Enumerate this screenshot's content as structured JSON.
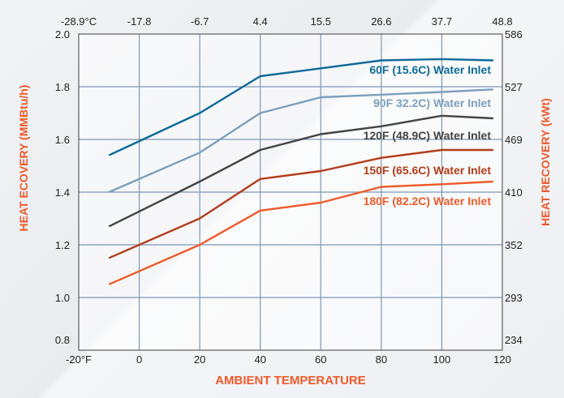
{
  "chart_data": {
    "type": "line",
    "xlabel": "AMBIENT TEMPERATURE",
    "ylabel_left": "HEAT ECOVERY (MMBtu/h)",
    "ylabel_right": "HEAT RECOVERY (kWt)",
    "xlim": [
      -20,
      120
    ],
    "ylim": [
      0.8,
      2.0
    ],
    "grid": true,
    "x_ticks_bottom": [
      "-20°F",
      "0",
      "20",
      "40",
      "60",
      "80",
      "100",
      "120"
    ],
    "x_ticks_top": [
      "-28.9°C",
      "-17.8",
      "-6.7",
      "4.4",
      "15.5",
      "26.6",
      "37.7",
      "48.8"
    ],
    "y_ticks_left": [
      "0.8",
      "1.0",
      "1.2",
      "1.4",
      "1.6",
      "1.8",
      "2.0"
    ],
    "y_ticks_right": [
      "234",
      "293",
      "352",
      "410",
      "469",
      "527",
      "586"
    ],
    "series": [
      {
        "name": "60F (15.6C) Water Inlet",
        "color": "#0e6a9a",
        "x": [
          -10,
          20,
          40,
          60,
          80,
          100,
          117
        ],
        "y": [
          1.54,
          1.7,
          1.84,
          1.87,
          1.9,
          1.905,
          1.9
        ]
      },
      {
        "name": "90F 32.2C) Water Inlet",
        "color": "#7d9fbc",
        "x": [
          -10,
          20,
          40,
          60,
          80,
          100,
          117
        ],
        "y": [
          1.4,
          1.55,
          1.7,
          1.76,
          1.77,
          1.78,
          1.79
        ]
      },
      {
        "name": "120F (48.9C) Water Inlet",
        "color": "#444444",
        "x": [
          -10,
          20,
          40,
          60,
          80,
          100,
          117
        ],
        "y": [
          1.27,
          1.44,
          1.56,
          1.62,
          1.65,
          1.69,
          1.68
        ]
      },
      {
        "name": "150F (65.6C) Water Inlet",
        "color": "#b33d1a",
        "x": [
          -10,
          20,
          40,
          60,
          80,
          100,
          117
        ],
        "y": [
          1.15,
          1.3,
          1.45,
          1.48,
          1.53,
          1.56,
          1.56
        ]
      },
      {
        "name": "180F (82.2C) Water Inlet",
        "color": "#ee5a2a",
        "x": [
          -10,
          20,
          40,
          60,
          80,
          100,
          117
        ],
        "y": [
          1.05,
          1.2,
          1.33,
          1.36,
          1.42,
          1.43,
          1.44
        ]
      }
    ],
    "colors": {
      "axis_title": "#ee5a2a",
      "grid": "#7d97b5",
      "plot_border": "#5f5f5f"
    }
  }
}
